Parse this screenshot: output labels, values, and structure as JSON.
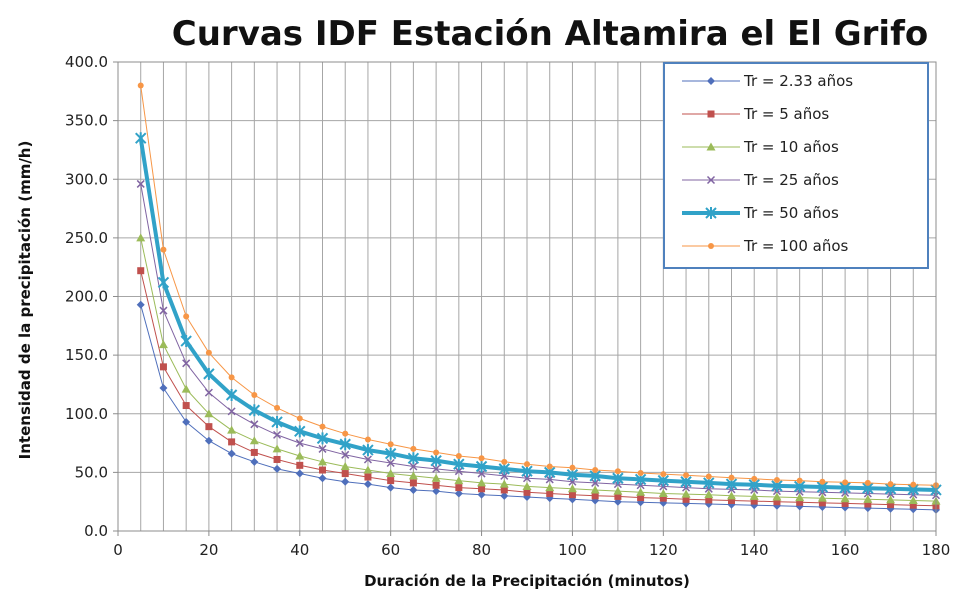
{
  "chart_data": {
    "type": "line",
    "title": "Curvas IDF Estación Altamira el El Grifo",
    "xlabel": "Duración de la Precipitación (minutos)",
    "ylabel": "Intensidad de la precipitación (mm/h)",
    "xlim": [
      0,
      180
    ],
    "ylim": [
      0,
      400
    ],
    "x_ticks": [
      "0",
      "20",
      "40",
      "60",
      "80",
      "100",
      "120",
      "140",
      "160",
      "180"
    ],
    "y_ticks": [
      "0.0",
      "50.0",
      "100.0",
      "150.0",
      "200.0",
      "250.0",
      "300.0",
      "350.0",
      "400.0"
    ],
    "grid": true,
    "legend_position": "top-right",
    "x": [
      5,
      10,
      15,
      20,
      25,
      30,
      35,
      40,
      45,
      50,
      55,
      60,
      65,
      70,
      75,
      80,
      85,
      90,
      95,
      100,
      105,
      110,
      115,
      120,
      125,
      130,
      135,
      140,
      145,
      150,
      155,
      160,
      165,
      170,
      175,
      180
    ],
    "series": [
      {
        "name": "Tr = 2.33 años",
        "color": "#4f6fbb",
        "marker": "diamond",
        "values": [
          193,
          122,
          93,
          77,
          66,
          59,
          53,
          49,
          45,
          42,
          40,
          37,
          35,
          34,
          32,
          31,
          30,
          29,
          28,
          27,
          26,
          25,
          24.5,
          24,
          23.5,
          23,
          22.5,
          22,
          21.5,
          21,
          20.5,
          20,
          19.5,
          19,
          18.5,
          18
        ]
      },
      {
        "name": "Tr = 5 años",
        "color": "#c0504d",
        "marker": "square",
        "values": [
          222,
          140,
          107,
          89,
          76,
          67,
          61,
          56,
          52,
          49,
          46,
          43,
          41,
          39,
          37,
          36,
          35,
          33,
          32,
          31,
          30,
          29.5,
          28.5,
          28,
          27,
          26.5,
          26,
          25.5,
          25,
          24.5,
          24,
          23.5,
          23,
          22.5,
          22,
          21.5
        ]
      },
      {
        "name": "Tr = 10 años",
        "color": "#9bbb59",
        "marker": "triangle",
        "values": [
          250,
          159,
          121,
          100,
          86,
          77,
          70,
          64,
          59,
          55,
          52,
          49,
          47,
          45,
          43,
          41,
          40,
          38,
          37,
          36,
          35,
          34,
          33,
          32,
          31.5,
          31,
          30,
          29.5,
          29,
          28.5,
          28,
          27.5,
          27,
          26.5,
          26,
          25.5
        ]
      },
      {
        "name": "Tr = 25 años",
        "color": "#8064a2",
        "marker": "x",
        "values": [
          296,
          188,
          143,
          118,
          102,
          91,
          82,
          75,
          70,
          65,
          61,
          58,
          55,
          53,
          51,
          49,
          47,
          45,
          44,
          42,
          41,
          40,
          39,
          38,
          37,
          36,
          35.5,
          35,
          34,
          33.5,
          33,
          32.5,
          32,
          31.5,
          31,
          30.5
        ]
      },
      {
        "name": "Tr = 50 años",
        "color": "#31a2c8",
        "marker": "star",
        "values": [
          335,
          212,
          162,
          134,
          116,
          103,
          93,
          85,
          79,
          74,
          69,
          66,
          62,
          60,
          57,
          55,
          53,
          51,
          50,
          48,
          47,
          45,
          44,
          43,
          42,
          41,
          40,
          39.5,
          38.5,
          38,
          37.5,
          37,
          36.5,
          36,
          35.5,
          35
        ]
      },
      {
        "name": "Tr = 100 años",
        "color": "#f79646",
        "marker": "circle",
        "values": [
          380,
          240,
          183,
          152,
          131,
          116,
          105,
          96,
          89,
          83,
          78,
          74,
          70,
          67,
          64,
          62,
          59,
          57,
          55,
          54,
          52,
          51,
          49.5,
          48.5,
          47.5,
          46.5,
          45.5,
          44.5,
          43.5,
          43,
          42,
          41.5,
          41,
          40,
          39.5,
          39
        ]
      }
    ]
  }
}
